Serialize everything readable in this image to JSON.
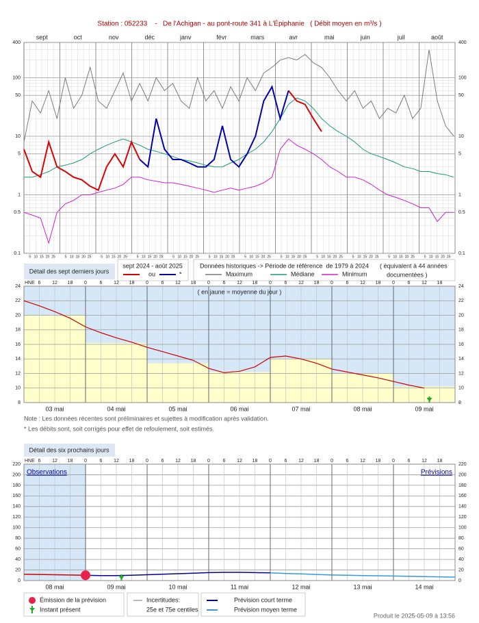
{
  "chart_data": [
    {
      "type": "line",
      "title": "Station : 052233    -   De l'Achigan - au pont-route 341 à L'Épiphanie   ( Débit moyen en m³/s )",
      "log_scale": true,
      "months": [
        "sept",
        "oct",
        "nov",
        "déc",
        "janv",
        "févr",
        "mars",
        "avr",
        "mai",
        "juin",
        "juil",
        "août"
      ],
      "day_ticks": [
        5,
        10,
        15,
        20,
        25
      ],
      "x": [
        0,
        7,
        14,
        21,
        28,
        35,
        42,
        49,
        56,
        63,
        70,
        77,
        84,
        91,
        98,
        105,
        112,
        119,
        126,
        133,
        140,
        147,
        154,
        161,
        168,
        175,
        182,
        189,
        196,
        203,
        210,
        217,
        224,
        231,
        238,
        245,
        252,
        259,
        266,
        273,
        280,
        287,
        294,
        301,
        308,
        315,
        322,
        329,
        336,
        343,
        350,
        357,
        364
      ],
      "xlim": [
        0,
        365
      ],
      "ylim": [
        0.1,
        400
      ],
      "yticks": [
        0.1,
        0.5,
        1,
        5,
        10,
        50,
        100,
        400
      ],
      "series": [
        {
          "name": "Maximum",
          "color": "#7a7a7a",
          "values": [
            8,
            40,
            25,
            60,
            20,
            100,
            30,
            50,
            150,
            40,
            30,
            60,
            120,
            40,
            80,
            40,
            100,
            60,
            80,
            40,
            30,
            100,
            40,
            60,
            30,
            70,
            40,
            100,
            60,
            120,
            150,
            200,
            220,
            200,
            250,
            180,
            150,
            100,
            60,
            40,
            60,
            30,
            40,
            20,
            30,
            25,
            50,
            20,
            30,
            300,
            40,
            15,
            10
          ]
        },
        {
          "name": "Médiane",
          "color": "#1a9a7a",
          "values": [
            2,
            2,
            2.2,
            2.5,
            3,
            3.2,
            3.5,
            4,
            5,
            6,
            7,
            8,
            9,
            8,
            7,
            6,
            5.5,
            5,
            4.5,
            4,
            3.8,
            3.5,
            3.2,
            3,
            3,
            3.5,
            4,
            5,
            6,
            8,
            12,
            20,
            35,
            45,
            40,
            30,
            20,
            15,
            12,
            10,
            8,
            6,
            5,
            4.5,
            4,
            3.5,
            3,
            2.8,
            2.5,
            2.5,
            2.3,
            2.2,
            2
          ]
        },
        {
          "name": "Minimum",
          "color": "#d020d0",
          "values": [
            0.5,
            0.45,
            0.4,
            0.15,
            0.5,
            0.7,
            0.8,
            1,
            1,
            1.1,
            1.2,
            1.3,
            1.5,
            2,
            2,
            1.8,
            1.7,
            1.6,
            1.6,
            1.5,
            1.4,
            1.3,
            1.2,
            1.1,
            1.2,
            1.3,
            1.2,
            1.3,
            1.4,
            1.6,
            2,
            6,
            9,
            7,
            6,
            5,
            4,
            3,
            2.5,
            2,
            2,
            1.8,
            1.5,
            1.2,
            1,
            0.9,
            0.8,
            0.7,
            0.6,
            0.6,
            0.35,
            0.5,
            0.5
          ]
        },
        {
          "name": "ou",
          "color": "#dd0000",
          "values": [
            6,
            2.5,
            2,
            8,
            3,
            2.5,
            2,
            1.8,
            1.4,
            1.2,
            3,
            5,
            3,
            8,
            4,
            null,
            null,
            null,
            null,
            null,
            null,
            null,
            null,
            null,
            null,
            null,
            null,
            null,
            null,
            null,
            null,
            null,
            60,
            40,
            35,
            20,
            12,
            null,
            null,
            null,
            null,
            null,
            null,
            null,
            null,
            null,
            null,
            null,
            null,
            null,
            null,
            null,
            null
          ]
        },
        {
          "name": "*",
          "color": "#0000b0",
          "values": [
            null,
            null,
            null,
            null,
            null,
            null,
            null,
            null,
            null,
            null,
            null,
            null,
            null,
            null,
            4,
            3,
            20,
            6,
            4,
            4,
            3.5,
            3,
            3,
            4,
            15,
            4,
            3,
            5,
            10,
            40,
            70,
            20,
            60,
            null,
            null,
            null,
            null,
            null,
            null,
            null,
            null,
            null,
            null,
            null,
            null,
            null,
            null,
            null,
            null,
            null,
            null,
            null,
            null
          ]
        }
      ],
      "detail_label": "Détail des sept derniers jours",
      "period_label": "sept 2024 - août 2025",
      "history_label": "Données historiques -> Période de référence  de 1979 à 2024",
      "equiv_label": "( équivalent à 44 années",
      "equiv_label2": "documentées )"
    },
    {
      "type": "line",
      "hour_label": "HNE",
      "hours": [
        0,
        6,
        12,
        18
      ],
      "categories": [
        "03 mai",
        "04 mai",
        "05 mai",
        "06 mai",
        "07 mai",
        "08 mai",
        "09 mai"
      ],
      "xlim": [
        0,
        168
      ],
      "ylim": [
        8,
        24
      ],
      "yticks": [
        8,
        10,
        12,
        14,
        16,
        18,
        20,
        22,
        24
      ],
      "annotation": "( en jaune = moyenne du jour )",
      "daily_means": {
        "color": "#ffffcc",
        "values": [
          20,
          16.2,
          13.4,
          12.2,
          14,
          12,
          10.2
        ]
      },
      "x": [
        0,
        6,
        12,
        18,
        24,
        30,
        36,
        42,
        48,
        54,
        60,
        66,
        72,
        78,
        84,
        90,
        96,
        102,
        108,
        114,
        120,
        126,
        132,
        138,
        144,
        150,
        156
      ],
      "series": [
        {
          "color": "#cc0000",
          "values": [
            22.0,
            21.3,
            20.5,
            19.6,
            18.4,
            17.6,
            16.9,
            16.3,
            15.6,
            15.0,
            14.4,
            13.8,
            12.7,
            12.1,
            12.3,
            12.9,
            14.2,
            14.4,
            14.0,
            13.4,
            12.6,
            12.2,
            11.8,
            11.4,
            10.9,
            10.4,
            10.0
          ]
        }
      ],
      "now_x": 158,
      "notes": [
        "Note : Les données récentes sont préliminaires et sujettes à modification après validation.",
        "* Les débits sont, soit corrigés pour effet de refoulement, soit estimés."
      ]
    },
    {
      "type": "line",
      "header": "Détail des six prochains jours",
      "hour_label": "HNE",
      "hours": [
        0,
        6,
        12,
        18
      ],
      "categories": [
        "08 mai",
        "09 mai",
        "10 mai",
        "11 mai",
        "12 mai",
        "13 mai",
        "14 mai"
      ],
      "xlim": [
        0,
        168
      ],
      "ylim": [
        0,
        220
      ],
      "yticks": [
        0,
        20,
        40,
        60,
        80,
        100,
        120,
        140,
        160,
        180,
        200,
        220
      ],
      "observed_label": "Observations",
      "forecast_label": "Prévisions",
      "series": [
        {
          "color": "#cc0000",
          "x": [
            0,
            6,
            12,
            18,
            24
          ],
          "values": [
            12,
            11.5,
            11,
            10.5,
            10
          ]
        },
        {
          "name": "Prévision court terme",
          "color": "#000099",
          "x": [
            24,
            30,
            36,
            42,
            48,
            54,
            60,
            66,
            72,
            78,
            84,
            90,
            96
          ],
          "values": [
            10,
            9.5,
            9.5,
            10,
            11,
            12,
            13,
            14,
            15,
            15.5,
            15.5,
            15,
            14.5
          ]
        },
        {
          "name": "Prévision moyen terme",
          "color": "#3399dd",
          "x": [
            96,
            102,
            108,
            114,
            120,
            126,
            132,
            138,
            144,
            150,
            156,
            162,
            168
          ],
          "values": [
            14.5,
            13.5,
            12.5,
            11.5,
            10.5,
            10,
            9.5,
            9,
            8.5,
            8,
            7.5,
            7,
            6.5
          ]
        }
      ],
      "emission": {
        "label": "Émission de la prévision",
        "x": 24,
        "value": 10,
        "color": "#e8204a"
      },
      "now": {
        "label": "Instant présent",
        "x": 38
      },
      "uncertainty_label": "Incertitudes:",
      "uncertainty_sub": "25e et 75e centiles",
      "footer": "Produit le 2025-05-09 à 13:56"
    }
  ]
}
